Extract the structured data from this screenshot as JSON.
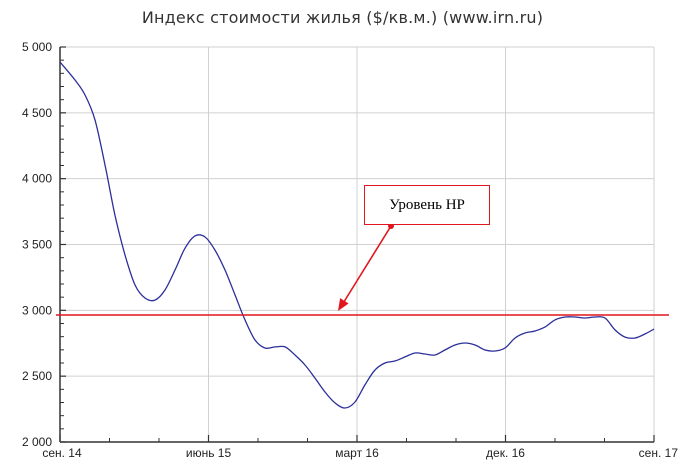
{
  "title": "Индекс стоимости жилья ($/кв.м.) (www.irn.ru)",
  "annotation": {
    "label": "Уровень НР",
    "color": "#e0171f"
  },
  "colors": {
    "series": "#2b2f9a",
    "reference_line": "#e0171f",
    "grid": "#d0d0d0",
    "axis": "#333333"
  },
  "chart_data": {
    "type": "line",
    "title": "Индекс стоимости жилья ($/кв.м.) (www.irn.ru)",
    "xlabel": "",
    "ylabel": "",
    "ylim": [
      2000,
      5000
    ],
    "yticks": [
      2000,
      2500,
      3000,
      3500,
      4000,
      4500,
      5000
    ],
    "ytick_labels": [
      "2 000",
      "2 500",
      "3 000",
      "3 500",
      "4 000",
      "4 500",
      "5 000"
    ],
    "xtick_labels": [
      "сен. 14",
      "июнь 15",
      "март 16",
      "дек. 16",
      "сен. 17"
    ],
    "x_range_months": [
      0,
      36
    ],
    "grid": true,
    "legend": null,
    "reference_line": {
      "label": "Уровень НР",
      "value": 2965
    },
    "series": [
      {
        "name": "Индекс стоимости жилья",
        "x_months": [
          0,
          0.91,
          1.52,
          2.12,
          2.73,
          3.33,
          3.94,
          4.55,
          5.15,
          5.76,
          6.36,
          6.97,
          7.58,
          8.18,
          8.79,
          9.39,
          10.0,
          10.61,
          11.21,
          11.82,
          12.42,
          13.03,
          13.64,
          14.24,
          14.85,
          15.45,
          16.06,
          16.67,
          17.27,
          17.88,
          18.48,
          19.09,
          19.7,
          20.3,
          20.91,
          21.52,
          22.12,
          22.73,
          23.33,
          23.94,
          24.55,
          25.15,
          25.76,
          26.36,
          26.97,
          27.58,
          28.18,
          28.79,
          29.39,
          30.0,
          30.61,
          31.21,
          31.82,
          32.42,
          33.03,
          33.64,
          34.24,
          34.85,
          35.45,
          36.0
        ],
        "values": [
          4886,
          4749,
          4635,
          4446,
          4104,
          3724,
          3420,
          3192,
          3094,
          3078,
          3154,
          3306,
          3473,
          3565,
          3557,
          3458,
          3306,
          3116,
          2927,
          2775,
          2714,
          2722,
          2722,
          2661,
          2585,
          2486,
          2380,
          2296,
          2258,
          2304,
          2433,
          2547,
          2600,
          2615,
          2646,
          2676,
          2668,
          2661,
          2699,
          2737,
          2752,
          2737,
          2699,
          2691,
          2714,
          2790,
          2828,
          2843,
          2873,
          2927,
          2949,
          2949,
          2942,
          2949,
          2942,
          2851,
          2797,
          2790,
          2820,
          2858
        ]
      }
    ]
  }
}
